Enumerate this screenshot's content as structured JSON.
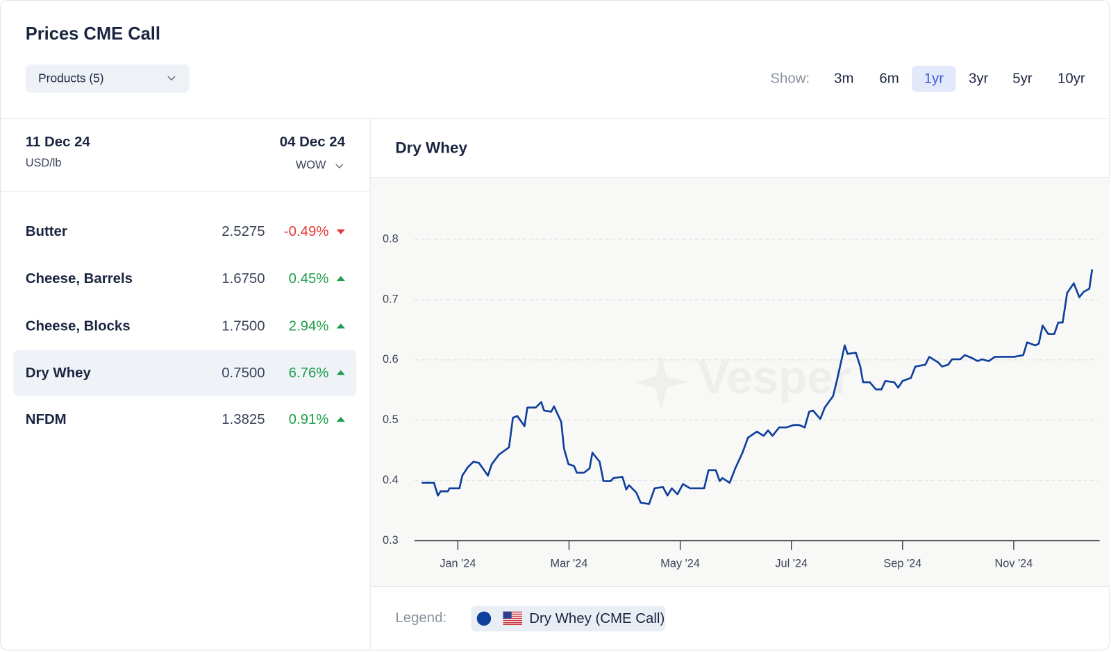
{
  "header": {
    "title": "Prices CME Call",
    "dropdown": "Products (5)"
  },
  "show": {
    "label": "Show:",
    "options": [
      {
        "label": "3m"
      },
      {
        "label": "6m"
      },
      {
        "label": "1yr",
        "active": true
      },
      {
        "label": "3yr"
      },
      {
        "label": "5yr"
      },
      {
        "label": "10yr"
      }
    ]
  },
  "table": {
    "date": "11 Dec 24",
    "unit": "USD/lb",
    "compare_date": "04 Dec 24",
    "compare_mode": "WOW",
    "rows": [
      {
        "name": "Butter",
        "price": "2.5275",
        "change": "-0.49%",
        "direction": "down"
      },
      {
        "name": "Cheese, Barrels",
        "price": "1.6750",
        "change": "0.45%",
        "direction": "up"
      },
      {
        "name": "Cheese, Blocks",
        "price": "1.7500",
        "change": "2.94%",
        "direction": "up"
      },
      {
        "name": "Dry Whey",
        "price": "0.7500",
        "change": "6.76%",
        "direction": "up",
        "selected": true
      },
      {
        "name": "NFDM",
        "price": "1.3825",
        "change": "0.91%",
        "direction": "up"
      }
    ]
  },
  "chart_data": {
    "type": "line",
    "title": "Dry Whey",
    "watermark": "Vesper",
    "legend_label": "Legend:",
    "xlim": [
      0.22,
      12.52
    ],
    "xticks": [
      {
        "value": 1,
        "label": "Jan '24"
      },
      {
        "value": 3,
        "label": "Mar '24"
      },
      {
        "value": 5,
        "label": "May '24"
      },
      {
        "value": 7,
        "label": "Jul '24"
      },
      {
        "value": 9,
        "label": "Sep '24"
      },
      {
        "value": 11,
        "label": "Nov '24"
      }
    ],
    "ylim": [
      0.3,
      0.88
    ],
    "yticks": [
      0.3,
      0.4,
      0.5,
      0.6,
      0.7,
      0.8
    ],
    "grid": true,
    "x": [
      0.35,
      0.57,
      0.64,
      0.69,
      0.82,
      0.85,
      1.03,
      1.08,
      1.18,
      1.28,
      1.38,
      1.54,
      1.61,
      1.74,
      1.92,
      1.99,
      2.07,
      2.2,
      2.25,
      2.4,
      2.5,
      2.55,
      2.68,
      2.73,
      2.86,
      2.91,
      2.99,
      3.09,
      3.14,
      3.27,
      3.37,
      3.42,
      3.55,
      3.62,
      3.75,
      3.8,
      3.96,
      4.03,
      4.08,
      4.21,
      4.29,
      4.44,
      4.54,
      4.69,
      4.77,
      4.85,
      4.95,
      5.05,
      5.18,
      5.33,
      5.43,
      5.51,
      5.64,
      5.71,
      5.76,
      5.89,
      5.99,
      6.12,
      6.22,
      6.38,
      6.5,
      6.58,
      6.66,
      6.78,
      6.91,
      7.04,
      7.14,
      7.24,
      7.32,
      7.39,
      7.52,
      7.6,
      7.75,
      7.83,
      7.96,
      8.01,
      8.16,
      8.24,
      8.29,
      8.41,
      8.52,
      8.62,
      8.69,
      8.85,
      8.92,
      9.0,
      9.15,
      9.23,
      9.41,
      9.48,
      9.64,
      9.71,
      9.82,
      9.89,
      10.04,
      10.12,
      10.25,
      10.35,
      10.43,
      10.55,
      10.66,
      10.78,
      11.01,
      11.17,
      11.24,
      11.39,
      11.45,
      11.52,
      11.62,
      11.73,
      11.8,
      11.88,
      11.96,
      12.08,
      12.18,
      12.26,
      12.36,
      12.41
    ],
    "series": [
      {
        "name": "Dry Whey (CME Call)",
        "color": "#0e3f9c",
        "values": [
          0.396,
          0.396,
          0.375,
          0.382,
          0.382,
          0.387,
          0.387,
          0.408,
          0.422,
          0.431,
          0.429,
          0.408,
          0.427,
          0.443,
          0.455,
          0.504,
          0.507,
          0.49,
          0.521,
          0.521,
          0.53,
          0.516,
          0.514,
          0.523,
          0.497,
          0.453,
          0.427,
          0.424,
          0.413,
          0.413,
          0.42,
          0.446,
          0.431,
          0.399,
          0.399,
          0.404,
          0.406,
          0.385,
          0.392,
          0.38,
          0.363,
          0.361,
          0.387,
          0.389,
          0.375,
          0.387,
          0.377,
          0.394,
          0.387,
          0.387,
          0.387,
          0.417,
          0.417,
          0.399,
          0.404,
          0.396,
          0.42,
          0.446,
          0.471,
          0.481,
          0.474,
          0.483,
          0.474,
          0.488,
          0.488,
          0.492,
          0.492,
          0.488,
          0.514,
          0.516,
          0.502,
          0.521,
          0.54,
          0.57,
          0.624,
          0.61,
          0.612,
          0.589,
          0.563,
          0.563,
          0.551,
          0.551,
          0.565,
          0.563,
          0.554,
          0.565,
          0.57,
          0.589,
          0.592,
          0.605,
          0.596,
          0.589,
          0.592,
          0.601,
          0.601,
          0.608,
          0.603,
          0.598,
          0.601,
          0.598,
          0.605,
          0.605,
          0.605,
          0.608,
          0.629,
          0.624,
          0.627,
          0.657,
          0.643,
          0.643,
          0.662,
          0.662,
          0.711,
          0.727,
          0.704,
          0.713,
          0.718,
          0.75
        ]
      }
    ]
  }
}
